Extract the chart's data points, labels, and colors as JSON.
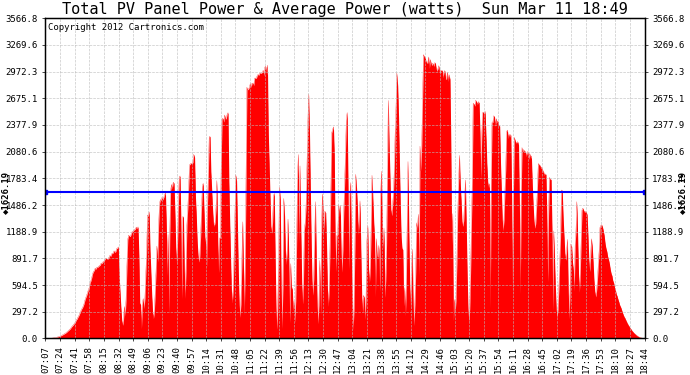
{
  "title": "Total PV Panel Power & Average Power (watts)  Sun Mar 11 18:49",
  "copyright_text": "Copyright 2012 Cartronics.com",
  "average_power": 1626.19,
  "y_max": 3566.8,
  "y_min": 0.0,
  "y_ticks": [
    0.0,
    297.2,
    594.5,
    891.7,
    1188.9,
    1486.2,
    1783.4,
    2080.6,
    2377.9,
    2675.1,
    2972.3,
    3269.6,
    3566.8
  ],
  "fill_color": "#FF0000",
  "line_color": "#FF0000",
  "avg_line_color": "#0000FF",
  "background_color": "#FFFFFF",
  "plot_bg_color": "#FFFFFF",
  "grid_color": "#BBBBBB",
  "title_fontsize": 11,
  "copyright_fontsize": 6.5,
  "tick_fontsize": 6.5,
  "x_tick_labels": [
    "07:07",
    "07:24",
    "07:41",
    "07:58",
    "08:15",
    "08:32",
    "08:49",
    "09:06",
    "09:23",
    "09:40",
    "09:57",
    "10:14",
    "10:31",
    "10:48",
    "11:05",
    "11:22",
    "11:39",
    "11:56",
    "12:13",
    "12:30",
    "12:47",
    "13:04",
    "13:21",
    "13:38",
    "13:55",
    "14:12",
    "14:29",
    "14:46",
    "15:03",
    "15:20",
    "15:37",
    "15:54",
    "16:11",
    "16:28",
    "16:45",
    "17:02",
    "17:19",
    "17:36",
    "17:53",
    "18:10",
    "18:27",
    "18:44"
  ],
  "num_points": 700
}
